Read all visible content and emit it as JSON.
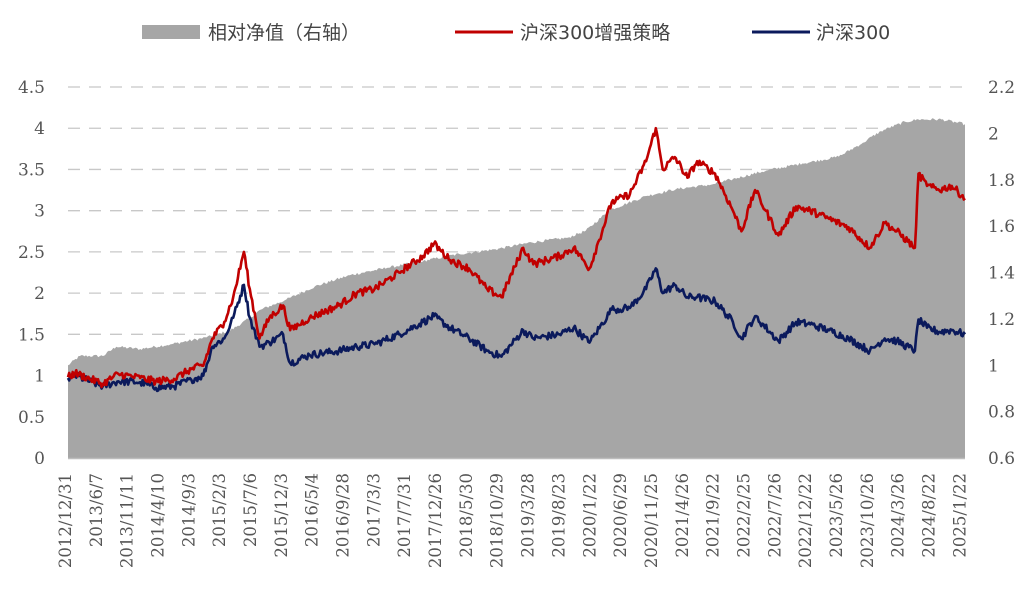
{
  "chart_data": {
    "type": "line",
    "legend": [
      {
        "label": "相对净值（右轴）",
        "color": "#a6a6a6",
        "kind": "area"
      },
      {
        "label": "沪深300增强策略",
        "color": "#c00000",
        "kind": "line"
      },
      {
        "label": "沪深300",
        "color": "#0b1a5c",
        "kind": "line"
      }
    ],
    "legend_position": "top",
    "x_ticks": [
      "2012/12/31",
      "2013/6/7",
      "2013/11/11",
      "2014/4/10",
      "2014/9/3",
      "2015/2/3",
      "2015/7/6",
      "2015/12/3",
      "2016/5/4",
      "2016/9/28",
      "2017/3/3",
      "2017/7/31",
      "2017/12/26",
      "2018/5/30",
      "2018/10/29",
      "2019/3/28",
      "2019/8/23",
      "2020/1/22",
      "2020/6/29",
      "2020/11/25",
      "2021/4/26",
      "2021/9/22",
      "2022/2/25",
      "2022/7/26",
      "2022/12/22",
      "2023/5/26",
      "2023/10/26",
      "2024/3/26",
      "2024/8/22",
      "2025/1/22"
    ],
    "y_left": {
      "ticks": [
        "0",
        "0.5",
        "1",
        "1.5",
        "2",
        "2.5",
        "3",
        "3.5",
        "4",
        "4.5"
      ],
      "range": [
        0,
        4.5
      ]
    },
    "y_right": {
      "ticks": [
        "0.6",
        "0.8",
        "1",
        "1.2",
        "1.4",
        "1.6",
        "1.8",
        "2",
        "2.2"
      ],
      "range": [
        0.6,
        2.2
      ]
    },
    "grid": "horizontal dashed",
    "series": [
      {
        "name": "沪深300增强策略",
        "axis": "left",
        "color": "#c00000",
        "points": [
          [
            "2012/12/31",
            0.98
          ],
          [
            "2013/2/5",
            1.03
          ],
          [
            "2013/6/25",
            0.9
          ],
          [
            "2013/9/12",
            1.02
          ],
          [
            "2013/12/31",
            0.97
          ],
          [
            "2014/3/20",
            0.93
          ],
          [
            "2014/6/20",
            0.96
          ],
          [
            "2014/9/15",
            1.08
          ],
          [
            "2014/11/15",
            1.12
          ],
          [
            "2014/12/31",
            1.45
          ],
          [
            "2015/3/1",
            1.65
          ],
          [
            "2015/4/15",
            1.95
          ],
          [
            "2015/6/8",
            2.5
          ],
          [
            "2015/7/8",
            2.05
          ],
          [
            "2015/8/26",
            1.45
          ],
          [
            "2015/10/15",
            1.7
          ],
          [
            "2015/12/23",
            1.85
          ],
          [
            "2016/1/28",
            1.55
          ],
          [
            "2016/5/5",
            1.7
          ],
          [
            "2016/9/30",
            1.85
          ],
          [
            "2016/12/30",
            2.0
          ],
          [
            "2017/3/30",
            2.05
          ],
          [
            "2017/7/31",
            2.25
          ],
          [
            "2017/11/30",
            2.45
          ],
          [
            "2018/1/24",
            2.6
          ],
          [
            "2018/4/15",
            2.4
          ],
          [
            "2018/7/20",
            2.3
          ],
          [
            "2018/10/20",
            2.05
          ],
          [
            "2018/12/31",
            1.95
          ],
          [
            "2019/4/20",
            2.55
          ],
          [
            "2019/6/10",
            2.35
          ],
          [
            "2019/10/20",
            2.45
          ],
          [
            "2019/12/31",
            2.55
          ],
          [
            "2020/3/20",
            2.3
          ],
          [
            "2020/7/10",
            3.1
          ],
          [
            "2020/10/10",
            3.2
          ],
          [
            "2020/12/31",
            3.6
          ],
          [
            "2021/2/18",
            4.0
          ],
          [
            "2021/3/25",
            3.5
          ],
          [
            "2021/5/25",
            3.65
          ],
          [
            "2021/7/28",
            3.4
          ],
          [
            "2021/9/15",
            3.6
          ],
          [
            "2021/12/15",
            3.45
          ],
          [
            "2022/3/15",
            3.0
          ],
          [
            "2022/4/27",
            2.75
          ],
          [
            "2022/7/5",
            3.25
          ],
          [
            "2022/10/31",
            2.7
          ],
          [
            "2023/1/28",
            3.05
          ],
          [
            "2023/4/10",
            3.0
          ],
          [
            "2023/7/15",
            2.9
          ],
          [
            "2023/10/20",
            2.8
          ],
          [
            "2024/2/5",
            2.55
          ],
          [
            "2024/4/20",
            2.85
          ],
          [
            "2024/6/20",
            2.75
          ],
          [
            "2024/9/20",
            2.55
          ],
          [
            "2024/10/8",
            3.45
          ],
          [
            "2024/11/20",
            3.3
          ],
          [
            "2025/1/20",
            3.25
          ],
          [
            "2025/3/25",
            3.3
          ],
          [
            "2025/5/31",
            3.15
          ]
        ]
      },
      {
        "name": "沪深300",
        "axis": "left",
        "color": "#0b1a5c",
        "points": [
          [
            "2012/12/31",
            0.97
          ],
          [
            "2013/2/5",
            1.0
          ],
          [
            "2013/6/25",
            0.87
          ],
          [
            "2013/9/12",
            0.93
          ],
          [
            "2013/12/31",
            0.92
          ],
          [
            "2014/3/20",
            0.85
          ],
          [
            "2014/6/20",
            0.87
          ],
          [
            "2014/9/15",
            0.95
          ],
          [
            "2014/11/15",
            1.0
          ],
          [
            "2014/12/31",
            1.35
          ],
          [
            "2015/3/1",
            1.45
          ],
          [
            "2015/4/15",
            1.7
          ],
          [
            "2015/6/8",
            2.1
          ],
          [
            "2015/7/8",
            1.7
          ],
          [
            "2015/8/26",
            1.35
          ],
          [
            "2015/10/15",
            1.4
          ],
          [
            "2015/12/23",
            1.5
          ],
          [
            "2016/1/28",
            1.15
          ],
          [
            "2016/5/5",
            1.25
          ],
          [
            "2016/9/30",
            1.3
          ],
          [
            "2016/12/30",
            1.35
          ],
          [
            "2017/3/30",
            1.38
          ],
          [
            "2017/7/31",
            1.5
          ],
          [
            "2017/11/30",
            1.65
          ],
          [
            "2018/1/24",
            1.72
          ],
          [
            "2018/4/15",
            1.58
          ],
          [
            "2018/7/20",
            1.45
          ],
          [
            "2018/10/20",
            1.3
          ],
          [
            "2018/12/31",
            1.23
          ],
          [
            "2019/4/20",
            1.55
          ],
          [
            "2019/6/10",
            1.45
          ],
          [
            "2019/10/20",
            1.5
          ],
          [
            "2019/12/31",
            1.58
          ],
          [
            "2020/3/20",
            1.4
          ],
          [
            "2020/7/10",
            1.8
          ],
          [
            "2020/10/10",
            1.82
          ],
          [
            "2020/12/31",
            2.05
          ],
          [
            "2021/2/18",
            2.3
          ],
          [
            "2021/3/25",
            2.0
          ],
          [
            "2021/5/25",
            2.1
          ],
          [
            "2021/7/28",
            1.95
          ],
          [
            "2021/9/15",
            1.95
          ],
          [
            "2021/12/15",
            1.9
          ],
          [
            "2022/3/15",
            1.65
          ],
          [
            "2022/4/27",
            1.45
          ],
          [
            "2022/7/5",
            1.72
          ],
          [
            "2022/10/31",
            1.42
          ],
          [
            "2023/1/28",
            1.65
          ],
          [
            "2023/4/10",
            1.62
          ],
          [
            "2023/7/15",
            1.55
          ],
          [
            "2023/10/20",
            1.45
          ],
          [
            "2024/2/5",
            1.3
          ],
          [
            "2024/4/20",
            1.45
          ],
          [
            "2024/6/20",
            1.42
          ],
          [
            "2024/9/20",
            1.3
          ],
          [
            "2024/10/8",
            1.68
          ],
          [
            "2024/11/20",
            1.58
          ],
          [
            "2025/1/20",
            1.53
          ],
          [
            "2025/3/25",
            1.55
          ],
          [
            "2025/5/31",
            1.5
          ]
        ]
      },
      {
        "name": "相对净值（右轴）",
        "axis": "right",
        "color": "#a6a6a6",
        "type": "area",
        "points": [
          [
            "2012/12/31",
            1.0
          ],
          [
            "2013/3/1",
            1.04
          ],
          [
            "2013/6/25",
            1.04
          ],
          [
            "2013/9/1",
            1.08
          ],
          [
            "2013/12/31",
            1.07
          ],
          [
            "2014/6/1",
            1.09
          ],
          [
            "2014/12/1",
            1.12
          ],
          [
            "2015/4/1",
            1.15
          ],
          [
            "2015/7/1",
            1.2
          ],
          [
            "2015/9/1",
            1.24
          ],
          [
            "2016/1/1",
            1.28
          ],
          [
            "2016/6/1",
            1.34
          ],
          [
            "2016/12/1",
            1.39
          ],
          [
            "2017/6/1",
            1.42
          ],
          [
            "2017/12/1",
            1.45
          ],
          [
            "2018/6/1",
            1.48
          ],
          [
            "2018/12/1",
            1.5
          ],
          [
            "2019/6/1",
            1.53
          ],
          [
            "2019/12/1",
            1.55
          ],
          [
            "2020/3/1",
            1.58
          ],
          [
            "2020/7/1",
            1.67
          ],
          [
            "2020/10/1",
            1.7
          ],
          [
            "2021/1/1",
            1.73
          ],
          [
            "2021/6/1",
            1.76
          ],
          [
            "2021/12/1",
            1.78
          ],
          [
            "2022/3/1",
            1.8
          ],
          [
            "2022/9/1",
            1.84
          ],
          [
            "2023/3/1",
            1.87
          ],
          [
            "2023/9/1",
            1.9
          ],
          [
            "2024/1/1",
            1.96
          ],
          [
            "2024/4/1",
            2.01
          ],
          [
            "2024/8/1",
            2.05
          ],
          [
            "2024/10/8",
            2.06
          ],
          [
            "2025/2/1",
            2.06
          ],
          [
            "2025/5/31",
            2.04
          ]
        ]
      }
    ]
  }
}
